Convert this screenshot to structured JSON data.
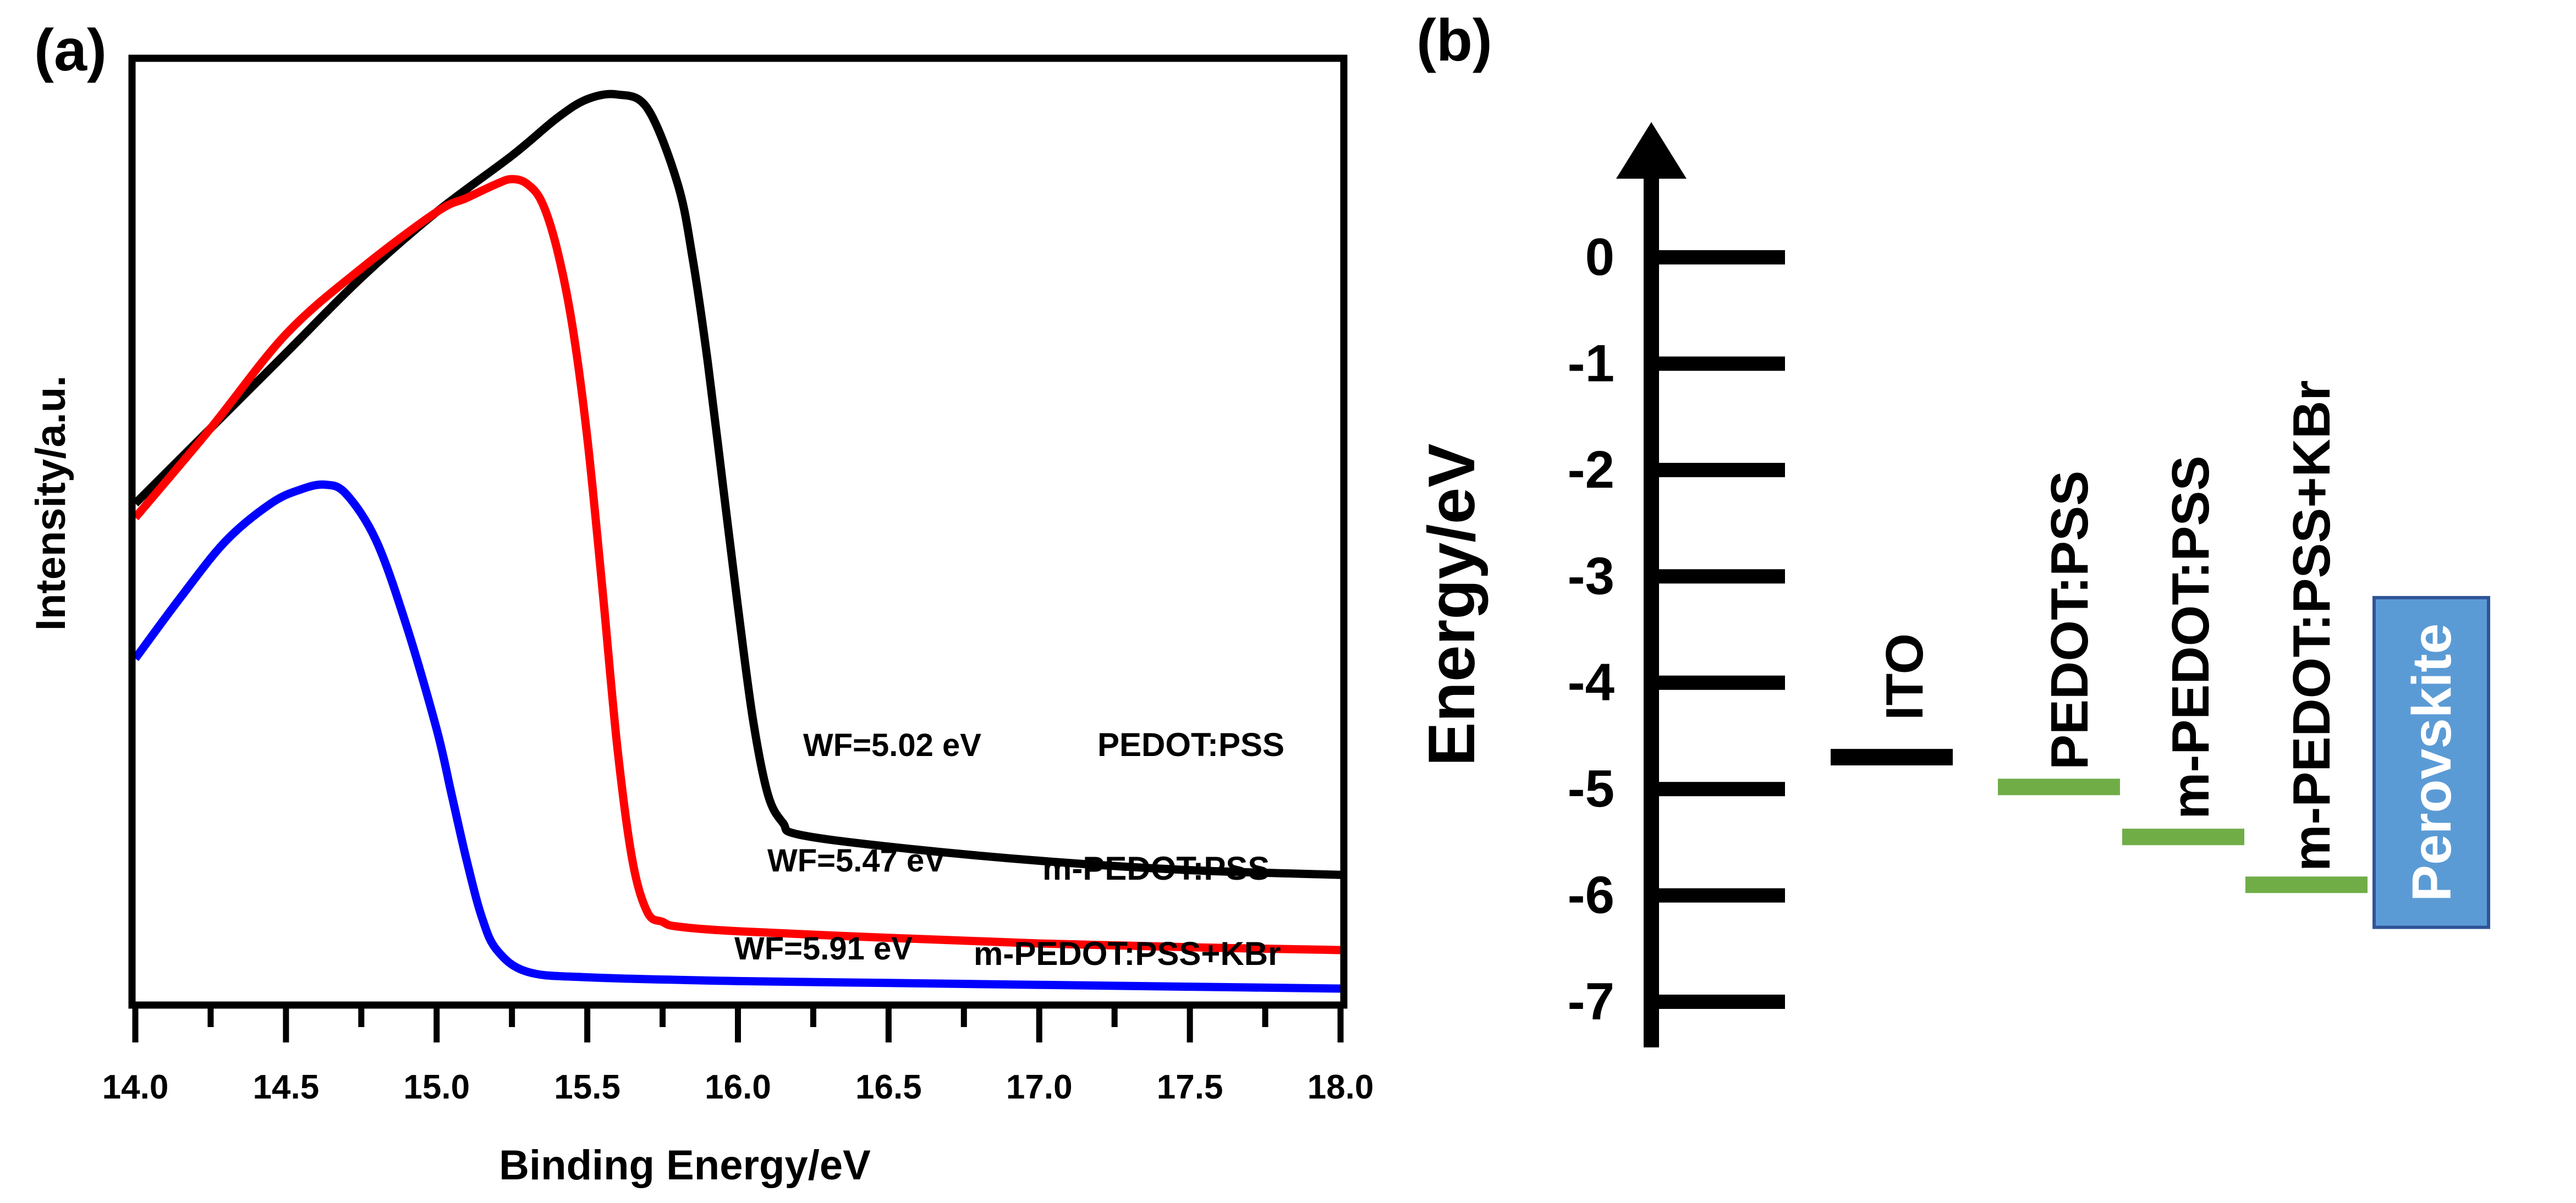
{
  "chart_data": [
    {
      "panel_label": "(a)",
      "type": "line",
      "title": "",
      "xlabel": "Binding Energy/eV",
      "ylabel": "Intensity/a.u.",
      "xlim": [
        14.0,
        18.0
      ],
      "ylim": [
        0,
        1
      ],
      "x_ticks": [
        "14.0",
        "14.5",
        "15.0",
        "15.5",
        "16.0",
        "16.5",
        "17.0",
        "17.5",
        "18.0"
      ],
      "x_tick_values": [
        14.0,
        14.5,
        15.0,
        15.5,
        16.0,
        16.5,
        17.0,
        17.5,
        18.0
      ],
      "x_minor_step": 0.25,
      "y_ticks": [],
      "grid": false,
      "series": [
        {
          "name": "PEDOT:PSS",
          "color": "#000000",
          "annotation": "WF=5.02 eV",
          "x": [
            14.0,
            14.25,
            14.5,
            14.75,
            15.0,
            15.25,
            15.4,
            15.5,
            15.6,
            15.7,
            15.8,
            15.85,
            15.9,
            15.95,
            16.0,
            16.05,
            16.1,
            16.15,
            16.2,
            16.5,
            17.0,
            17.5,
            18.0
          ],
          "values": [
            0.53,
            0.61,
            0.69,
            0.77,
            0.84,
            0.9,
            0.94,
            0.96,
            0.965,
            0.95,
            0.87,
            0.79,
            0.68,
            0.55,
            0.42,
            0.3,
            0.22,
            0.19,
            0.178,
            0.165,
            0.15,
            0.14,
            0.135
          ]
        },
        {
          "name": "m-PEDOT:PSS",
          "color": "#ff0000",
          "annotation": "WF=5.47 eV",
          "x": [
            14.0,
            14.25,
            14.5,
            14.75,
            15.0,
            15.1,
            15.2,
            15.25,
            15.3,
            15.35,
            15.4,
            15.45,
            15.5,
            15.55,
            15.6,
            15.65,
            15.7,
            15.75,
            15.8,
            16.0,
            16.5,
            17.0,
            17.5,
            18.0
          ],
          "values": [
            0.515,
            0.61,
            0.71,
            0.78,
            0.84,
            0.855,
            0.87,
            0.875,
            0.87,
            0.85,
            0.8,
            0.72,
            0.6,
            0.44,
            0.27,
            0.15,
            0.095,
            0.085,
            0.08,
            0.075,
            0.068,
            0.062,
            0.058,
            0.055
          ]
        },
        {
          "name": "m-PEDOT:PSS+KBr",
          "color": "#0000ff",
          "annotation": "WF=5.91 eV",
          "x": [
            14.0,
            14.15,
            14.3,
            14.45,
            14.55,
            14.63,
            14.7,
            14.8,
            14.9,
            15.0,
            15.05,
            15.1,
            15.15,
            15.2,
            15.3,
            15.5,
            16.0,
            16.5,
            17.0,
            17.5,
            18.0
          ],
          "values": [
            0.365,
            0.43,
            0.49,
            0.53,
            0.545,
            0.55,
            0.54,
            0.49,
            0.4,
            0.29,
            0.22,
            0.15,
            0.09,
            0.055,
            0.032,
            0.026,
            0.022,
            0.02,
            0.018,
            0.016,
            0.014
          ]
        }
      ]
    },
    {
      "panel_label": "(b)",
      "type": "diagram",
      "ylabel": "Energy/eV",
      "ylim": [
        -7,
        0
      ],
      "y_ticks": [
        "0",
        "-1",
        "-2",
        "-3",
        "-4",
        "-5",
        "-6",
        "-7"
      ],
      "y_tick_values": [
        0,
        -1,
        -2,
        -3,
        -4,
        -5,
        -6,
        -7
      ],
      "levels": [
        {
          "name": "ITO",
          "energy": -4.7,
          "color": "#000000"
        },
        {
          "name": "PEDOT:PSS",
          "energy": -4.98,
          "color": "#70ad47"
        },
        {
          "name": "m-PEDOT:PSS",
          "energy": -5.45,
          "color": "#70ad47"
        },
        {
          "name": "m-PEDOT:PSS+KBr",
          "energy": -5.9,
          "color": "#70ad47"
        }
      ],
      "band": {
        "name": "Perovskite",
        "top": -3.2,
        "bottom": -6.3,
        "fill": "#5b9bd5",
        "border": "#2f5597",
        "text_color": "#ffffff"
      }
    }
  ]
}
